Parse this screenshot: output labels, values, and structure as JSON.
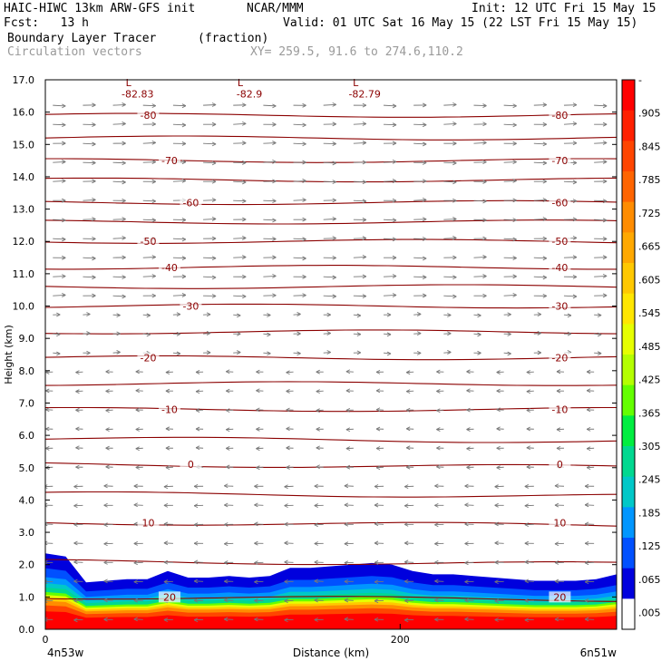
{
  "header": {
    "line1_left": "HAIC-HIWC 13km ARW-GFS init",
    "line1_mid": "NCAR/MMM",
    "line1_right": "Init: 12 UTC Fri 15 May 15",
    "line2_left": "Fcst:   13 h",
    "line2_right": "Valid: 01 UTC Sat 16 May 15 (22 LST Fri 15 May 15)",
    "field_name": "Boundary Layer Tracer",
    "field_units": "(fraction)",
    "vector_label": "Circulation vectors",
    "xy_label": "XY= 259.5, 91.6 to 274.6,110.2"
  },
  "chart_data": {
    "type": "heatmap",
    "ylabel": "Height (km)",
    "xlabel": "Distance (km)",
    "y_ticks": [
      "0.0",
      "1.0",
      "2.0",
      "3.0",
      "4.0",
      "5.0",
      "6.0",
      "7.0",
      "8.0",
      "9.0",
      "10.0",
      "11.0",
      "12.0",
      "13.0",
      "14.0",
      "15.0",
      "16.0",
      "17.0"
    ],
    "ylim": [
      0,
      17
    ],
    "x_ticks": [
      {
        "x": 0,
        "label": "0"
      },
      {
        "x": 200,
        "label": "200"
      }
    ],
    "xlim": [
      0,
      322
    ],
    "x_end_labels": {
      "left": "4n53w",
      "right": "6n51w"
    },
    "colorbar_labels": [
      "-",
      ".905",
      ".845",
      ".785",
      ".725",
      ".665",
      ".605",
      ".545",
      ".485",
      ".425",
      ".365",
      ".305",
      ".245",
      ".185",
      ".125",
      ".065",
      ".005"
    ],
    "colorbar_colors": [
      "#ff0000",
      "#ff2000",
      "#ff4500",
      "#ff6400",
      "#ff8c00",
      "#ffa800",
      "#ffc800",
      "#ffe600",
      "#e6ff00",
      "#b4ff00",
      "#64ff00",
      "#00ee40",
      "#00d890",
      "#00c8c8",
      "#0096ff",
      "#0050ff",
      "#0000dd",
      "#ffffff"
    ],
    "temperature_contours": [
      {
        "label": "-80",
        "height_km": 15.9
      },
      {
        "label": "-70",
        "height_km": 14.5
      },
      {
        "label": "-60",
        "height_km": 13.2
      },
      {
        "label": "-50",
        "height_km": 12.0
      },
      {
        "label": "-40",
        "height_km": 11.2
      },
      {
        "label": "-30",
        "height_km": 10.0
      },
      {
        "label": "-20",
        "height_km": 8.4
      },
      {
        "label": "-10",
        "height_km": 6.8
      },
      {
        "label": "0",
        "height_km": 5.1
      },
      {
        "label": "10",
        "height_km": 3.3
      },
      {
        "label": "20",
        "height_km": 1.0
      }
    ],
    "extra_contours_km": [
      15.2,
      13.9,
      12.6,
      10.6,
      9.2,
      7.6,
      5.9,
      4.2,
      2.1
    ],
    "lows": [
      {
        "label": "-82.83",
        "x_km": 52
      },
      {
        "label": "-82.9",
        "x_km": 115
      },
      {
        "label": "-82.79",
        "x_km": 180
      }
    ],
    "boundary_layer_top_km": [
      2.3,
      2.2,
      1.4,
      1.45,
      1.5,
      1.5,
      1.75,
      1.55,
      1.55,
      1.6,
      1.55,
      1.6,
      1.85,
      1.85,
      1.9,
      1.95,
      2.0,
      1.95,
      1.75,
      1.65,
      1.65,
      1.6,
      1.55,
      1.5,
      1.45,
      1.45,
      1.45,
      1.5,
      1.65
    ]
  }
}
